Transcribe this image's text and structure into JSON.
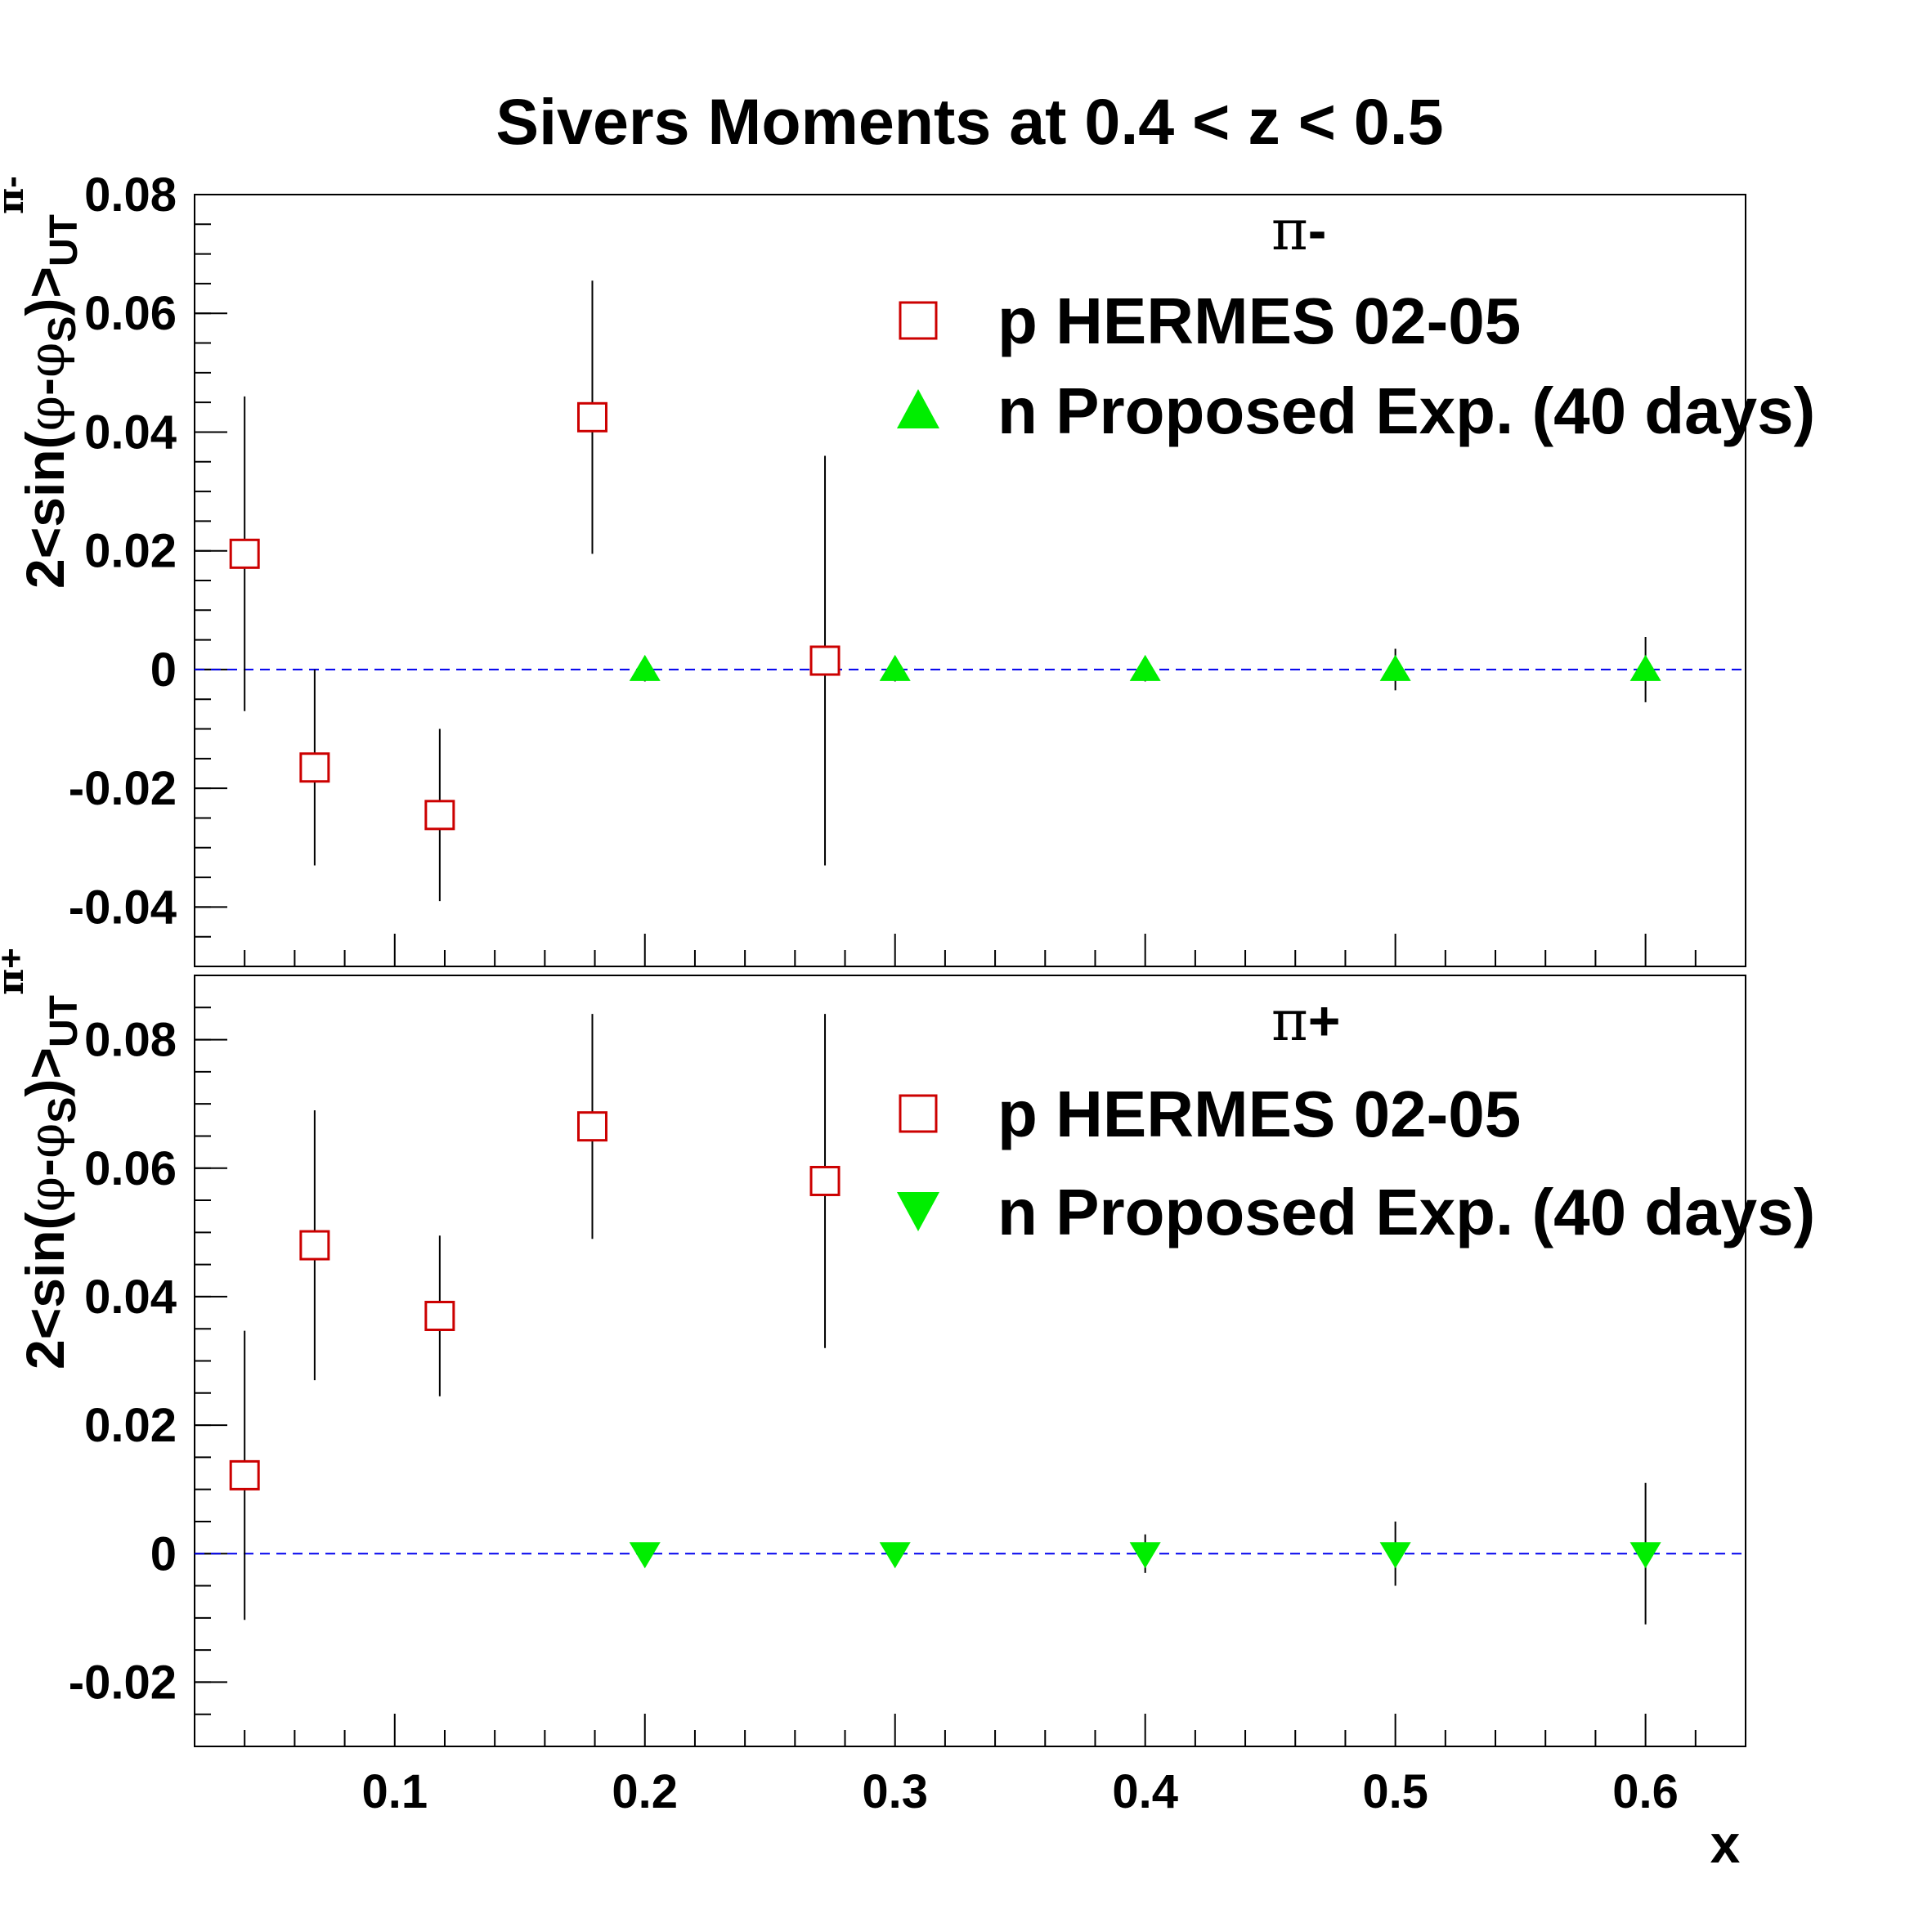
{
  "title": "Sivers Moments at 0.4 < z < 0.5",
  "chart_data": [
    {
      "type": "scatter",
      "panel": "top",
      "label_greek": "π",
      "label_sign": "-",
      "ylabel": {
        "prefix": "2<sin(",
        "phi": "φ",
        "dash": "-",
        "phi_s": "φ",
        "s_sub": "S",
        "suffix": ")>",
        "ut_sub": "UT",
        "sup_greek": "π",
        "sup_sign": "-"
      },
      "xlim": [
        0.02,
        0.64
      ],
      "ylim": [
        -0.05,
        0.08
      ],
      "yticks": [
        -0.04,
        -0.02,
        0,
        0.02,
        0.04,
        0.06,
        0.08
      ],
      "ytick_labels": [
        "-0.04",
        "-0.02",
        "0",
        "0.02",
        "0.04",
        "0.06",
        "0.08"
      ],
      "zero_line": 0,
      "series": [
        {
          "name": "p HERMES 02-05",
          "marker": "open-square",
          "color": "#cc0000",
          "points": [
            {
              "x": 0.04,
              "y": 0.0195,
              "err": 0.0265
            },
            {
              "x": 0.068,
              "y": -0.0165,
              "err": 0.0165
            },
            {
              "x": 0.118,
              "y": -0.0245,
              "err": 0.0145
            },
            {
              "x": 0.179,
              "y": 0.0425,
              "err": 0.023
            },
            {
              "x": 0.272,
              "y": 0.0015,
              "err": 0.0345
            }
          ]
        },
        {
          "name": "n Proposed Exp. (40 days)",
          "marker": "triangle-up",
          "color": "#00ee00",
          "points": [
            {
              "x": 0.2,
              "y": 0,
              "err": 0.002
            },
            {
              "x": 0.3,
              "y": 0,
              "err": 0.002
            },
            {
              "x": 0.4,
              "y": 0,
              "err": 0.002
            },
            {
              "x": 0.5,
              "y": 0,
              "err": 0.0035
            },
            {
              "x": 0.6,
              "y": 0,
              "err": 0.0055
            }
          ]
        }
      ]
    },
    {
      "type": "scatter",
      "panel": "bottom",
      "label_greek": "π",
      "label_sign": "+",
      "ylabel": {
        "prefix": "2<sin(",
        "phi": "φ",
        "dash": "-",
        "phi_s": "φ",
        "s_sub": "S",
        "suffix": ")>",
        "ut_sub": "UT",
        "sup_greek": "π",
        "sup_sign": "+"
      },
      "xlabel": "x",
      "xlim": [
        0.02,
        0.64
      ],
      "ylim": [
        -0.03,
        0.09
      ],
      "yticks": [
        -0.02,
        0,
        0.02,
        0.04,
        0.06,
        0.08
      ],
      "ytick_labels": [
        "-0.02",
        "0",
        "0.02",
        "0.04",
        "0.06",
        "0.08"
      ],
      "xticks": [
        0.1,
        0.2,
        0.3,
        0.4,
        0.5,
        0.6
      ],
      "xtick_labels": [
        "0.1",
        "0.2",
        "0.3",
        "0.4",
        "0.5",
        "0.6"
      ],
      "zero_line": 0,
      "series": [
        {
          "name": "p HERMES 02-05",
          "marker": "open-square",
          "color": "#cc0000",
          "points": [
            {
              "x": 0.04,
              "y": 0.0122,
              "err": 0.0225
            },
            {
              "x": 0.068,
              "y": 0.048,
              "err": 0.021
            },
            {
              "x": 0.118,
              "y": 0.037,
              "err": 0.0125
            },
            {
              "x": 0.179,
              "y": 0.0665,
              "err": 0.0175
            },
            {
              "x": 0.272,
              "y": 0.058,
              "err": 0.026
            }
          ]
        },
        {
          "name": "n Proposed Exp. (40 days)",
          "marker": "triangle-down",
          "color": "#00ee00",
          "points": [
            {
              "x": 0.2,
              "y": 0,
              "err": 0.0015
            },
            {
              "x": 0.3,
              "y": 0,
              "err": 0.0015
            },
            {
              "x": 0.4,
              "y": 0,
              "err": 0.003
            },
            {
              "x": 0.5,
              "y": 0,
              "err": 0.005
            },
            {
              "x": 0.6,
              "y": 0,
              "err": 0.011
            }
          ]
        }
      ]
    }
  ]
}
